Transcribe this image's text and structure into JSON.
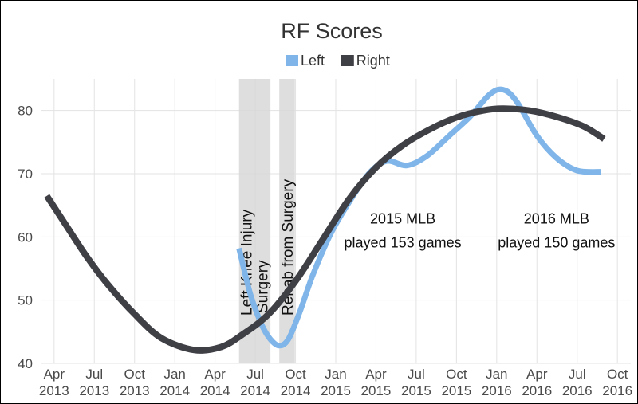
{
  "chart_data": {
    "type": "line",
    "title": "RF Scores",
    "xlabel": "",
    "ylabel": "",
    "ylim": [
      40,
      85
    ],
    "yticks": [
      40,
      50,
      60,
      70,
      80
    ],
    "xlim": [
      "2013-03",
      "2016-11"
    ],
    "xticks": [
      {
        "date": "2013-04",
        "month": "Apr",
        "year": "2013"
      },
      {
        "date": "2013-07",
        "month": "Jul",
        "year": "2013"
      },
      {
        "date": "2013-10",
        "month": "Oct",
        "year": "2013"
      },
      {
        "date": "2014-01",
        "month": "Jan",
        "year": "2014"
      },
      {
        "date": "2014-04",
        "month": "Apr",
        "year": "2014"
      },
      {
        "date": "2014-07",
        "month": "Jul",
        "year": "2014"
      },
      {
        "date": "2014-10",
        "month": "Oct",
        "year": "2014"
      },
      {
        "date": "2015-01",
        "month": "Jan",
        "year": "2015"
      },
      {
        "date": "2015-04",
        "month": "Apr",
        "year": "2015"
      },
      {
        "date": "2015-07",
        "month": "Jul",
        "year": "2015"
      },
      {
        "date": "2015-10",
        "month": "Oct",
        "year": "2015"
      },
      {
        "date": "2016-01",
        "month": "Jan",
        "year": "2016"
      },
      {
        "date": "2016-04",
        "month": "Apr",
        "year": "2016"
      },
      {
        "date": "2016-07",
        "month": "Jul",
        "year": "2016"
      },
      {
        "date": "2016-10",
        "month": "Oct",
        "year": "2016"
      }
    ],
    "grid": true,
    "legend_position": "top-center",
    "series": [
      {
        "name": "Left",
        "color": "#7fb5e8",
        "points": [
          {
            "x": "2014-05-25",
            "y": 58.2
          },
          {
            "x": "2014-06-20",
            "y": 51.0
          },
          {
            "x": "2014-07-15",
            "y": 46.2
          },
          {
            "x": "2014-08-05",
            "y": 43.8
          },
          {
            "x": "2014-08-25",
            "y": 42.8
          },
          {
            "x": "2014-09-15",
            "y": 43.8
          },
          {
            "x": "2014-10-10",
            "y": 48.0
          },
          {
            "x": "2014-11-10",
            "y": 54.0
          },
          {
            "x": "2014-12-20",
            "y": 60.5
          },
          {
            "x": "2015-02-01",
            "y": 65.5
          },
          {
            "x": "2015-03-15",
            "y": 70.0
          },
          {
            "x": "2015-04-25",
            "y": 72.0
          },
          {
            "x": "2015-06-10",
            "y": 71.3
          },
          {
            "x": "2015-07-25",
            "y": 72.8
          },
          {
            "x": "2015-09-15",
            "y": 76.0
          },
          {
            "x": "2015-11-01",
            "y": 79.0
          },
          {
            "x": "2015-12-15",
            "y": 82.5
          },
          {
            "x": "2016-01-15",
            "y": 83.3
          },
          {
            "x": "2016-02-15",
            "y": 81.5
          },
          {
            "x": "2016-04-01",
            "y": 76.0
          },
          {
            "x": "2016-05-15",
            "y": 72.5
          },
          {
            "x": "2016-07-01",
            "y": 70.5
          },
          {
            "x": "2016-08-25",
            "y": 70.3
          }
        ]
      },
      {
        "name": "Right",
        "color": "#3f3f46",
        "points": [
          {
            "x": "2013-03-15",
            "y": 66.5
          },
          {
            "x": "2013-05-01",
            "y": 61.5
          },
          {
            "x": "2013-06-15",
            "y": 56.8
          },
          {
            "x": "2013-08-01",
            "y": 52.5
          },
          {
            "x": "2013-10-01",
            "y": 47.8
          },
          {
            "x": "2013-12-01",
            "y": 44.0
          },
          {
            "x": "2014-02-15",
            "y": 42.1
          },
          {
            "x": "2014-04-15",
            "y": 42.6
          },
          {
            "x": "2014-06-01",
            "y": 44.5
          },
          {
            "x": "2014-08-01",
            "y": 47.8
          },
          {
            "x": "2014-10-01",
            "y": 53.0
          },
          {
            "x": "2014-12-01",
            "y": 59.5
          },
          {
            "x": "2015-02-01",
            "y": 66.0
          },
          {
            "x": "2015-04-01",
            "y": 71.0
          },
          {
            "x": "2015-06-01",
            "y": 74.5
          },
          {
            "x": "2015-08-01",
            "y": 77.0
          },
          {
            "x": "2015-10-01",
            "y": 78.9
          },
          {
            "x": "2015-12-01",
            "y": 80.0
          },
          {
            "x": "2016-01-15",
            "y": 80.3
          },
          {
            "x": "2016-03-15",
            "y": 80.0
          },
          {
            "x": "2016-05-15",
            "y": 79.0
          },
          {
            "x": "2016-07-15",
            "y": 77.5
          },
          {
            "x": "2016-09-01",
            "y": 75.5
          }
        ]
      }
    ],
    "bands": [
      {
        "start": "2014-05-25",
        "end": "2014-08-05",
        "label_top": "Left Knee Injury",
        "label_bottom": "Surgery"
      },
      {
        "start": "2014-08-25",
        "end": "2014-09-30",
        "label": "Rehab from Surgery"
      }
    ],
    "annotations": [
      {
        "x": "2015-06-01",
        "y": 62.0,
        "line1": "2015 MLB",
        "line2": "played 153 games"
      },
      {
        "x": "2016-05-15",
        "y": 62.0,
        "line1": "2016 MLB",
        "line2": "played 150 games"
      }
    ]
  }
}
